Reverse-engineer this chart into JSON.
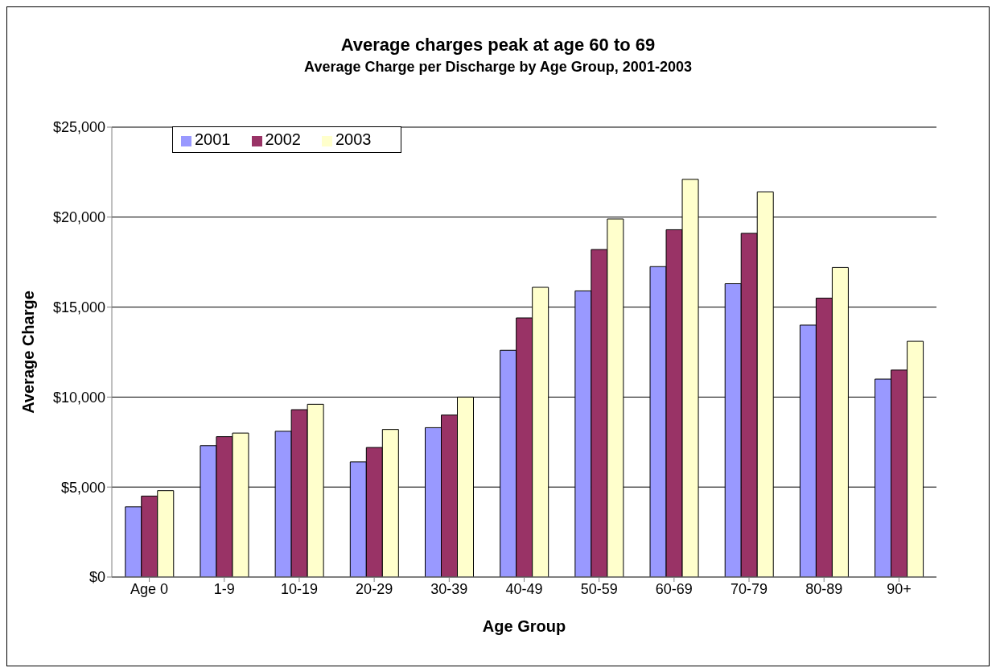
{
  "chart_data": {
    "type": "bar",
    "title": "Average charges peak at age 60 to 69",
    "subtitle": "Average Charge per Discharge by Age Group, 2001-2003",
    "xlabel": "Age Group",
    "ylabel": "Average Charge",
    "categories": [
      "Age 0",
      "1-9",
      "10-19",
      "20-29",
      "30-39",
      "40-49",
      "50-59",
      "60-69",
      "70-79",
      "80-89",
      "90+"
    ],
    "series": [
      {
        "name": "2001",
        "color": "#9999ff",
        "values": [
          3900,
          7300,
          8100,
          6400,
          8300,
          12600,
          15900,
          17250,
          16300,
          14000,
          11000
        ]
      },
      {
        "name": "2002",
        "color": "#993366",
        "values": [
          4500,
          7800,
          9300,
          7200,
          9000,
          14400,
          18200,
          19300,
          19100,
          15500,
          11500
        ]
      },
      {
        "name": "2003",
        "color": "#ffffcc",
        "values": [
          4800,
          8000,
          9600,
          8200,
          10000,
          16100,
          19900,
          22100,
          21400,
          17200,
          13100
        ]
      }
    ],
    "ylim": [
      0,
      25000
    ],
    "yticks": [
      {
        "value": 0,
        "label": "$0"
      },
      {
        "value": 5000,
        "label": "$5,000"
      },
      {
        "value": 10000,
        "label": "$10,000"
      },
      {
        "value": 15000,
        "label": "$15,000"
      },
      {
        "value": 20000,
        "label": "$20,000"
      },
      {
        "value": 25000,
        "label": "$25,000"
      }
    ],
    "grid": "y",
    "legend": "top left"
  }
}
